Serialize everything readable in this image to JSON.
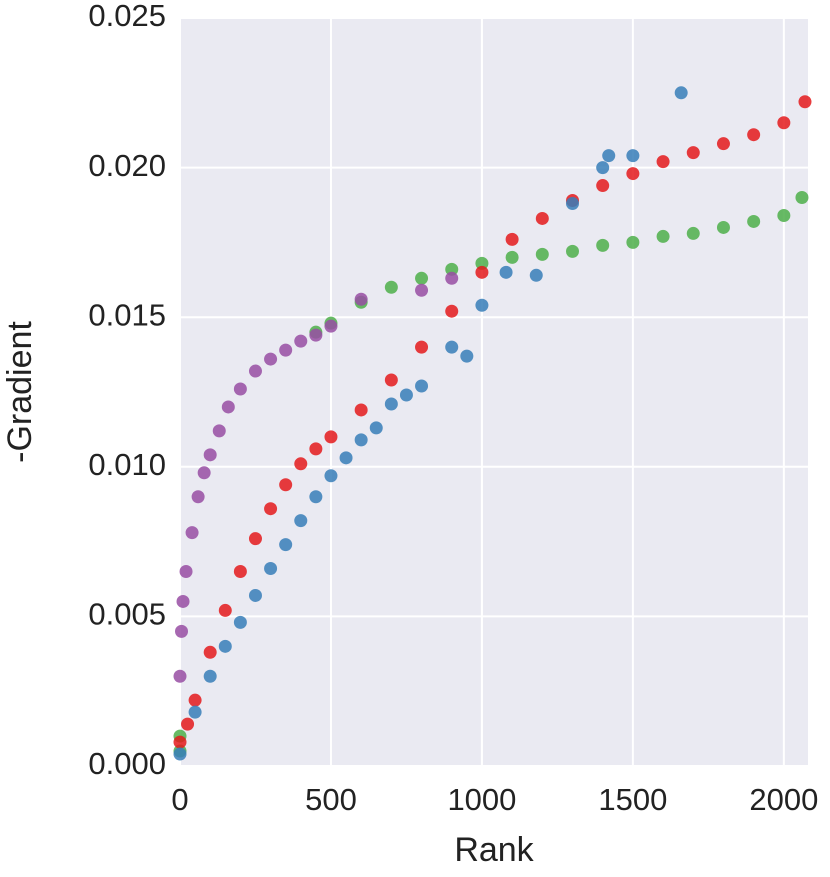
{
  "chart_data": {
    "type": "scatter",
    "x_label": "Rank",
    "y_label": "-Gradient",
    "xlim": [
      0,
      2080
    ],
    "ylim": [
      0,
      0.025
    ],
    "xticks": [
      0,
      500,
      1000,
      1500,
      2000
    ],
    "yticks": [
      {
        "value": 0,
        "label": "0.000"
      },
      {
        "value": 0.005,
        "label": "0.005"
      },
      {
        "value": 0.01,
        "label": "0.010"
      },
      {
        "value": 0.015,
        "label": "0.015"
      },
      {
        "value": 0.02,
        "label": "0.020"
      },
      {
        "value": 0.025,
        "label": "0.025"
      }
    ],
    "grid": true,
    "series": [
      {
        "color": "#4daf4a",
        "x": [
          0,
          0,
          450,
          500,
          600,
          700,
          800,
          900,
          1000,
          1100,
          1200,
          1300,
          1400,
          1500,
          1600,
          1700,
          1800,
          1900,
          2000,
          2060
        ],
        "values": [
          0.0005,
          0.001,
          0.0145,
          0.0148,
          0.0155,
          0.016,
          0.0163,
          0.0166,
          0.0168,
          0.017,
          0.0171,
          0.0172,
          0.0174,
          0.0175,
          0.0177,
          0.0178,
          0.018,
          0.0182,
          0.0184,
          0.019
        ]
      },
      {
        "color": "#984ea3",
        "x": [
          0,
          5,
          10,
          20,
          40,
          60,
          80,
          100,
          130,
          160,
          200,
          250,
          300,
          350,
          400,
          450,
          500,
          600,
          800,
          900
        ],
        "values": [
          0.003,
          0.0045,
          0.0055,
          0.0065,
          0.0078,
          0.009,
          0.0098,
          0.0104,
          0.0112,
          0.012,
          0.0126,
          0.0132,
          0.0136,
          0.0139,
          0.0142,
          0.0144,
          0.0147,
          0.0156,
          0.0159,
          0.0163
        ]
      },
      {
        "color": "#e41a1c",
        "x": [
          0,
          25,
          50,
          100,
          150,
          200,
          250,
          300,
          350,
          400,
          450,
          500,
          600,
          700,
          800,
          900,
          1000,
          1100,
          1200,
          1300,
          1400,
          1500,
          1600,
          1700,
          1800,
          1900,
          2000,
          2070
        ],
        "values": [
          0.0008,
          0.0014,
          0.0022,
          0.0038,
          0.0052,
          0.0065,
          0.0076,
          0.0086,
          0.0094,
          0.0101,
          0.0106,
          0.011,
          0.0119,
          0.0129,
          0.014,
          0.0152,
          0.0165,
          0.0176,
          0.0183,
          0.0189,
          0.0194,
          0.0198,
          0.0202,
          0.0205,
          0.0208,
          0.0211,
          0.0215,
          0.0222
        ]
      },
      {
        "color": "#377eb8",
        "x": [
          0,
          50,
          100,
          150,
          200,
          250,
          300,
          350,
          400,
          450,
          500,
          550,
          600,
          650,
          700,
          750,
          800,
          900,
          950,
          1000,
          1080,
          1180,
          1300,
          1400,
          1420,
          1500,
          1660
        ],
        "values": [
          0.0004,
          0.0018,
          0.003,
          0.004,
          0.0048,
          0.0057,
          0.0066,
          0.0074,
          0.0082,
          0.009,
          0.0097,
          0.0103,
          0.0109,
          0.0113,
          0.0121,
          0.0124,
          0.0127,
          0.014,
          0.0137,
          0.0154,
          0.0165,
          0.0164,
          0.0188,
          0.02,
          0.0204,
          0.0204,
          0.0225
        ]
      }
    ]
  }
}
